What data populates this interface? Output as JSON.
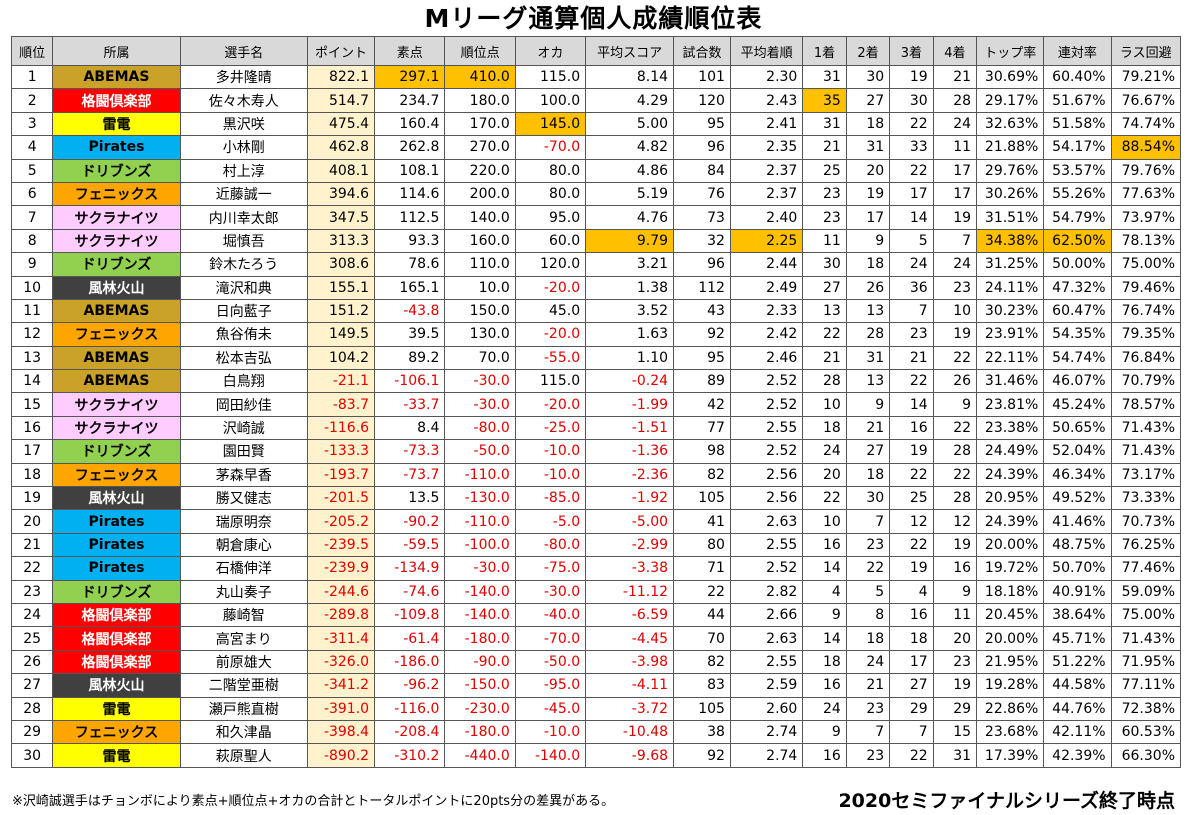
{
  "title": "Mリーグ通算個人成績順位表",
  "headers": [
    "順位",
    "所属",
    "選手名",
    "ポイント",
    "素点",
    "順位点",
    "オカ",
    "平均スコア",
    "試合数",
    "平均着順",
    "1着",
    "2着",
    "3着",
    "4着",
    "トップ率",
    "連対率",
    "ラス回避"
  ],
  "colors": {
    "ABEMAS": "#c9a227",
    "格闘倶楽部": "#ff0000",
    "雷電": "#ffff00",
    "Pirates": "#00b0f0",
    "ドリブンズ": "#92d050",
    "フェニックス": "#ffa500",
    "サクラナイツ": "#ffccff",
    "風林火山": "#404040",
    "highlight": "#ffc000",
    "points_bg": "#fff2cc",
    "negative": "#e00000"
  },
  "rows": [
    {
      "rank": "1",
      "team": "ABEMAS",
      "player": "多井隆晴",
      "points": "822.1",
      "raw": "297.1",
      "rankpts": "410.0",
      "oka": "115.0",
      "avg": "8.14",
      "games": "101",
      "avgrank": "2.30",
      "p1": "31",
      "p2": "30",
      "p3": "19",
      "p4": "21",
      "top": "30.69%",
      "rentai": "60.40%",
      "avoid": "79.21%",
      "hl": [
        "raw",
        "rankpts"
      ]
    },
    {
      "rank": "2",
      "team": "格闘倶楽部",
      "player": "佐々木寿人",
      "points": "514.7",
      "raw": "234.7",
      "rankpts": "180.0",
      "oka": "100.0",
      "avg": "4.29",
      "games": "120",
      "avgrank": "2.43",
      "p1": "35",
      "p2": "27",
      "p3": "30",
      "p4": "28",
      "top": "29.17%",
      "rentai": "51.67%",
      "avoid": "76.67%",
      "hl": [
        "p1"
      ]
    },
    {
      "rank": "3",
      "team": "雷電",
      "player": "黒沢咲",
      "points": "475.4",
      "raw": "160.4",
      "rankpts": "170.0",
      "oka": "145.0",
      "avg": "5.00",
      "games": "95",
      "avgrank": "2.41",
      "p1": "31",
      "p2": "18",
      "p3": "22",
      "p4": "24",
      "top": "32.63%",
      "rentai": "51.58%",
      "avoid": "74.74%",
      "hl": [
        "oka"
      ]
    },
    {
      "rank": "4",
      "team": "Pirates",
      "player": "小林剛",
      "points": "462.8",
      "raw": "262.8",
      "rankpts": "270.0",
      "oka": "-70.0",
      "avg": "4.82",
      "games": "96",
      "avgrank": "2.35",
      "p1": "21",
      "p2": "31",
      "p3": "33",
      "p4": "11",
      "top": "21.88%",
      "rentai": "54.17%",
      "avoid": "88.54%",
      "hl": [
        "avoid"
      ]
    },
    {
      "rank": "5",
      "team": "ドリブンズ",
      "player": "村上淳",
      "points": "408.1",
      "raw": "108.1",
      "rankpts": "220.0",
      "oka": "80.0",
      "avg": "4.86",
      "games": "84",
      "avgrank": "2.37",
      "p1": "25",
      "p2": "20",
      "p3": "22",
      "p4": "17",
      "top": "29.76%",
      "rentai": "53.57%",
      "avoid": "79.76%",
      "hl": []
    },
    {
      "rank": "6",
      "team": "フェニックス",
      "player": "近藤誠一",
      "points": "394.6",
      "raw": "114.6",
      "rankpts": "200.0",
      "oka": "80.0",
      "avg": "5.19",
      "games": "76",
      "avgrank": "2.37",
      "p1": "23",
      "p2": "19",
      "p3": "17",
      "p4": "17",
      "top": "30.26%",
      "rentai": "55.26%",
      "avoid": "77.63%",
      "hl": []
    },
    {
      "rank": "7",
      "team": "サクラナイツ",
      "player": "内川幸太郎",
      "points": "347.5",
      "raw": "112.5",
      "rankpts": "140.0",
      "oka": "95.0",
      "avg": "4.76",
      "games": "73",
      "avgrank": "2.40",
      "p1": "23",
      "p2": "17",
      "p3": "14",
      "p4": "19",
      "top": "31.51%",
      "rentai": "54.79%",
      "avoid": "73.97%",
      "hl": []
    },
    {
      "rank": "8",
      "team": "サクラナイツ",
      "player": "堀慎吾",
      "points": "313.3",
      "raw": "93.3",
      "rankpts": "160.0",
      "oka": "60.0",
      "avg": "9.79",
      "games": "32",
      "avgrank": "2.25",
      "p1": "11",
      "p2": "9",
      "p3": "5",
      "p4": "7",
      "top": "34.38%",
      "rentai": "62.50%",
      "avoid": "78.13%",
      "hl": [
        "avg",
        "avgrank",
        "top",
        "rentai"
      ]
    },
    {
      "rank": "9",
      "team": "ドリブンズ",
      "player": "鈴木たろう",
      "points": "308.6",
      "raw": "78.6",
      "rankpts": "110.0",
      "oka": "120.0",
      "avg": "3.21",
      "games": "96",
      "avgrank": "2.44",
      "p1": "30",
      "p2": "18",
      "p3": "24",
      "p4": "24",
      "top": "31.25%",
      "rentai": "50.00%",
      "avoid": "75.00%",
      "hl": []
    },
    {
      "rank": "10",
      "team": "風林火山",
      "player": "滝沢和典",
      "points": "155.1",
      "raw": "165.1",
      "rankpts": "10.0",
      "oka": "-20.0",
      "avg": "1.38",
      "games": "112",
      "avgrank": "2.49",
      "p1": "27",
      "p2": "26",
      "p3": "36",
      "p4": "23",
      "top": "24.11%",
      "rentai": "47.32%",
      "avoid": "79.46%",
      "hl": []
    },
    {
      "rank": "11",
      "team": "ABEMAS",
      "player": "日向藍子",
      "points": "151.2",
      "raw": "-43.8",
      "rankpts": "150.0",
      "oka": "45.0",
      "avg": "3.52",
      "games": "43",
      "avgrank": "2.33",
      "p1": "13",
      "p2": "13",
      "p3": "7",
      "p4": "10",
      "top": "30.23%",
      "rentai": "60.47%",
      "avoid": "76.74%",
      "hl": []
    },
    {
      "rank": "12",
      "team": "フェニックス",
      "player": "魚谷侑未",
      "points": "149.5",
      "raw": "39.5",
      "rankpts": "130.0",
      "oka": "-20.0",
      "avg": "1.63",
      "games": "92",
      "avgrank": "2.42",
      "p1": "22",
      "p2": "28",
      "p3": "23",
      "p4": "19",
      "top": "23.91%",
      "rentai": "54.35%",
      "avoid": "79.35%",
      "hl": []
    },
    {
      "rank": "13",
      "team": "ABEMAS",
      "player": "松本吉弘",
      "points": "104.2",
      "raw": "89.2",
      "rankpts": "70.0",
      "oka": "-55.0",
      "avg": "1.10",
      "games": "95",
      "avgrank": "2.46",
      "p1": "21",
      "p2": "31",
      "p3": "21",
      "p4": "22",
      "top": "22.11%",
      "rentai": "54.74%",
      "avoid": "76.84%",
      "hl": []
    },
    {
      "rank": "14",
      "team": "ABEMAS",
      "player": "白鳥翔",
      "points": "-21.1",
      "raw": "-106.1",
      "rankpts": "-30.0",
      "oka": "115.0",
      "avg": "-0.24",
      "games": "89",
      "avgrank": "2.52",
      "p1": "28",
      "p2": "13",
      "p3": "22",
      "p4": "26",
      "top": "31.46%",
      "rentai": "46.07%",
      "avoid": "70.79%",
      "hl": []
    },
    {
      "rank": "15",
      "team": "サクラナイツ",
      "player": "岡田紗佳",
      "points": "-83.7",
      "raw": "-33.7",
      "rankpts": "-30.0",
      "oka": "-20.0",
      "avg": "-1.99",
      "games": "42",
      "avgrank": "2.52",
      "p1": "10",
      "p2": "9",
      "p3": "14",
      "p4": "9",
      "top": "23.81%",
      "rentai": "45.24%",
      "avoid": "78.57%",
      "hl": []
    },
    {
      "rank": "16",
      "team": "サクラナイツ",
      "player": "沢崎誠",
      "points": "-116.6",
      "raw": "8.4",
      "rankpts": "-80.0",
      "oka": "-25.0",
      "avg": "-1.51",
      "games": "77",
      "avgrank": "2.55",
      "p1": "18",
      "p2": "21",
      "p3": "16",
      "p4": "22",
      "top": "23.38%",
      "rentai": "50.65%",
      "avoid": "71.43%",
      "hl": []
    },
    {
      "rank": "17",
      "team": "ドリブンズ",
      "player": "園田賢",
      "points": "-133.3",
      "raw": "-73.3",
      "rankpts": "-50.0",
      "oka": "-10.0",
      "avg": "-1.36",
      "games": "98",
      "avgrank": "2.52",
      "p1": "24",
      "p2": "27",
      "p3": "19",
      "p4": "28",
      "top": "24.49%",
      "rentai": "52.04%",
      "avoid": "71.43%",
      "hl": []
    },
    {
      "rank": "18",
      "team": "フェニックス",
      "player": "茅森早香",
      "points": "-193.7",
      "raw": "-73.7",
      "rankpts": "-110.0",
      "oka": "-10.0",
      "avg": "-2.36",
      "games": "82",
      "avgrank": "2.56",
      "p1": "20",
      "p2": "18",
      "p3": "22",
      "p4": "22",
      "top": "24.39%",
      "rentai": "46.34%",
      "avoid": "73.17%",
      "hl": []
    },
    {
      "rank": "19",
      "team": "風林火山",
      "player": "勝又健志",
      "points": "-201.5",
      "raw": "13.5",
      "rankpts": "-130.0",
      "oka": "-85.0",
      "avg": "-1.92",
      "games": "105",
      "avgrank": "2.56",
      "p1": "22",
      "p2": "30",
      "p3": "25",
      "p4": "28",
      "top": "20.95%",
      "rentai": "49.52%",
      "avoid": "73.33%",
      "hl": []
    },
    {
      "rank": "20",
      "team": "Pirates",
      "player": "瑞原明奈",
      "points": "-205.2",
      "raw": "-90.2",
      "rankpts": "-110.0",
      "oka": "-5.0",
      "avg": "-5.00",
      "games": "41",
      "avgrank": "2.63",
      "p1": "10",
      "p2": "7",
      "p3": "12",
      "p4": "12",
      "top": "24.39%",
      "rentai": "41.46%",
      "avoid": "70.73%",
      "hl": []
    },
    {
      "rank": "21",
      "team": "Pirates",
      "player": "朝倉康心",
      "points": "-239.5",
      "raw": "-59.5",
      "rankpts": "-100.0",
      "oka": "-80.0",
      "avg": "-2.99",
      "games": "80",
      "avgrank": "2.55",
      "p1": "16",
      "p2": "23",
      "p3": "22",
      "p4": "19",
      "top": "20.00%",
      "rentai": "48.75%",
      "avoid": "76.25%",
      "hl": []
    },
    {
      "rank": "22",
      "team": "Pirates",
      "player": "石橋伸洋",
      "points": "-239.9",
      "raw": "-134.9",
      "rankpts": "-30.0",
      "oka": "-75.0",
      "avg": "-3.38",
      "games": "71",
      "avgrank": "2.52",
      "p1": "14",
      "p2": "22",
      "p3": "19",
      "p4": "16",
      "top": "19.72%",
      "rentai": "50.70%",
      "avoid": "77.46%",
      "hl": []
    },
    {
      "rank": "23",
      "team": "ドリブンズ",
      "player": "丸山奏子",
      "points": "-244.6",
      "raw": "-74.6",
      "rankpts": "-140.0",
      "oka": "-30.0",
      "avg": "-11.12",
      "games": "22",
      "avgrank": "2.82",
      "p1": "4",
      "p2": "5",
      "p3": "4",
      "p4": "9",
      "top": "18.18%",
      "rentai": "40.91%",
      "avoid": "59.09%",
      "hl": []
    },
    {
      "rank": "24",
      "team": "格闘倶楽部",
      "player": "藤崎智",
      "points": "-289.8",
      "raw": "-109.8",
      "rankpts": "-140.0",
      "oka": "-40.0",
      "avg": "-6.59",
      "games": "44",
      "avgrank": "2.66",
      "p1": "9",
      "p2": "8",
      "p3": "16",
      "p4": "11",
      "top": "20.45%",
      "rentai": "38.64%",
      "avoid": "75.00%",
      "hl": []
    },
    {
      "rank": "25",
      "team": "格闘倶楽部",
      "player": "高宮まり",
      "points": "-311.4",
      "raw": "-61.4",
      "rankpts": "-180.0",
      "oka": "-70.0",
      "avg": "-4.45",
      "games": "70",
      "avgrank": "2.63",
      "p1": "14",
      "p2": "18",
      "p3": "18",
      "p4": "20",
      "top": "20.00%",
      "rentai": "45.71%",
      "avoid": "71.43%",
      "hl": []
    },
    {
      "rank": "26",
      "team": "格闘倶楽部",
      "player": "前原雄大",
      "points": "-326.0",
      "raw": "-186.0",
      "rankpts": "-90.0",
      "oka": "-50.0",
      "avg": "-3.98",
      "games": "82",
      "avgrank": "2.55",
      "p1": "18",
      "p2": "24",
      "p3": "17",
      "p4": "23",
      "top": "21.95%",
      "rentai": "51.22%",
      "avoid": "71.95%",
      "hl": []
    },
    {
      "rank": "27",
      "team": "風林火山",
      "player": "二階堂亜樹",
      "points": "-341.2",
      "raw": "-96.2",
      "rankpts": "-150.0",
      "oka": "-95.0",
      "avg": "-4.11",
      "games": "83",
      "avgrank": "2.59",
      "p1": "16",
      "p2": "21",
      "p3": "27",
      "p4": "19",
      "top": "19.28%",
      "rentai": "44.58%",
      "avoid": "77.11%",
      "hl": []
    },
    {
      "rank": "28",
      "team": "雷電",
      "player": "瀬戸熊直樹",
      "points": "-391.0",
      "raw": "-116.0",
      "rankpts": "-230.0",
      "oka": "-45.0",
      "avg": "-3.72",
      "games": "105",
      "avgrank": "2.60",
      "p1": "24",
      "p2": "23",
      "p3": "29",
      "p4": "29",
      "top": "22.86%",
      "rentai": "44.76%",
      "avoid": "72.38%",
      "hl": []
    },
    {
      "rank": "29",
      "team": "フェニックス",
      "player": "和久津晶",
      "points": "-398.4",
      "raw": "-208.4",
      "rankpts": "-180.0",
      "oka": "-10.0",
      "avg": "-10.48",
      "games": "38",
      "avgrank": "2.74",
      "p1": "9",
      "p2": "7",
      "p3": "7",
      "p4": "15",
      "top": "23.68%",
      "rentai": "42.11%",
      "avoid": "60.53%",
      "hl": []
    },
    {
      "rank": "30",
      "team": "雷電",
      "player": "萩原聖人",
      "points": "-890.2",
      "raw": "-310.2",
      "rankpts": "-440.0",
      "oka": "-140.0",
      "avg": "-9.68",
      "games": "92",
      "avgrank": "2.74",
      "p1": "16",
      "p2": "23",
      "p3": "22",
      "p4": "31",
      "top": "17.39%",
      "rentai": "42.39%",
      "avoid": "66.30%",
      "hl": []
    }
  ],
  "footer_note": "※沢崎誠選手はチョンボにより素点+順位点+オカの合計とトータルポイントに20pts分の差異がある。",
  "footer_right": "2020セミファイナルシリーズ終了時点"
}
